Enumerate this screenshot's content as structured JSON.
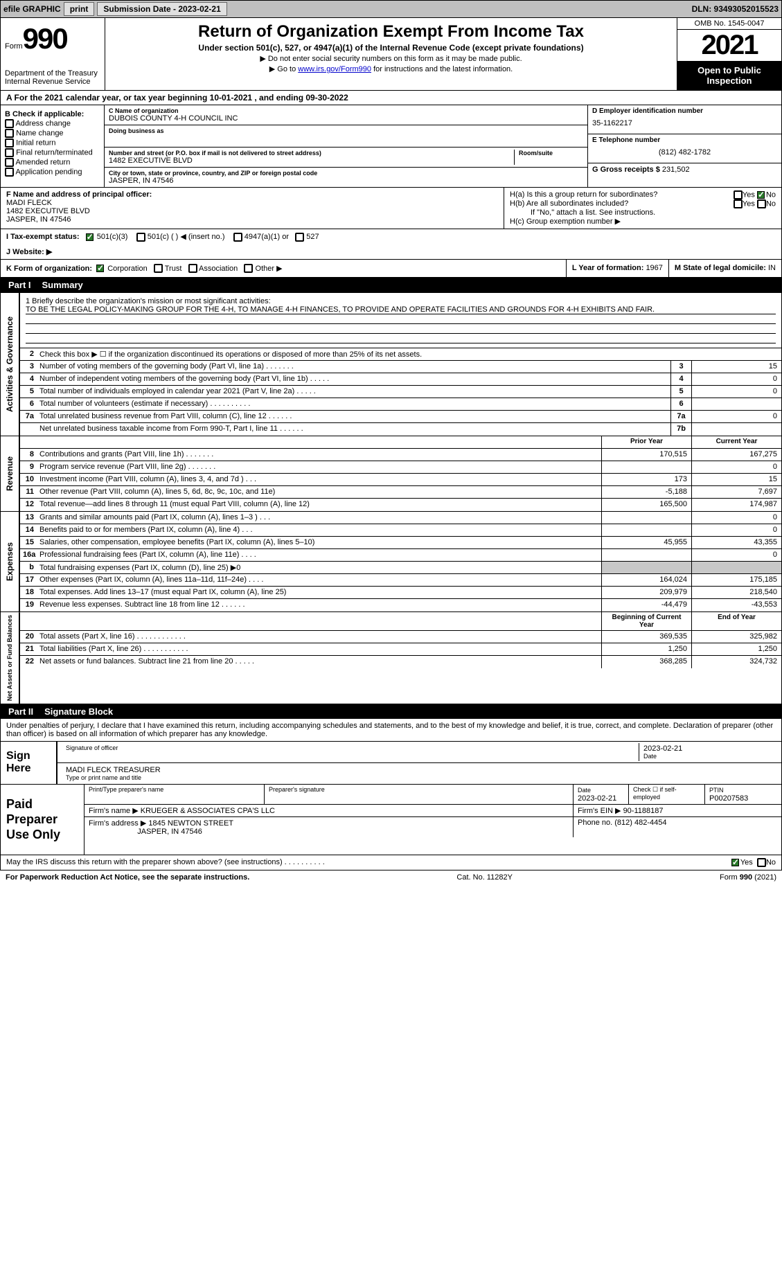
{
  "topbar": {
    "efile_label": "efile GRAPHIC",
    "print_btn": "print",
    "sub_date_label": "Submission Date - 2023-02-21",
    "dln_label": "DLN: 93493052015523"
  },
  "header": {
    "form_word": "Form",
    "form_num": "990",
    "dept": "Department of the Treasury",
    "irs": "Internal Revenue Service",
    "title": "Return of Organization Exempt From Income Tax",
    "subtitle": "Under section 501(c), 527, or 4947(a)(1) of the Internal Revenue Code (except private foundations)",
    "note1": "▶ Do not enter social security numbers on this form as it may be made public.",
    "note2_pre": "▶ Go to ",
    "note2_link": "www.irs.gov/Form990",
    "note2_post": " for instructions and the latest information.",
    "omb": "OMB No. 1545-0047",
    "year": "2021",
    "inspect": "Open to Public Inspection"
  },
  "row_a": "A For the 2021 calendar year, or tax year beginning 10-01-2021    , and ending 09-30-2022",
  "col_b": {
    "header": "B Check if applicable:",
    "items": [
      "Address change",
      "Name change",
      "Initial return",
      "Final return/terminated",
      "Amended return",
      "Application pending"
    ]
  },
  "col_c": {
    "name_label": "C Name of organization",
    "name": "DUBOIS COUNTY 4-H COUNCIL INC",
    "dba_label": "Doing business as",
    "addr_label": "Number and street (or P.O. box if mail is not delivered to street address)",
    "room_label": "Room/suite",
    "addr": "1482 EXECUTIVE BLVD",
    "city_label": "City or town, state or province, country, and ZIP or foreign postal code",
    "city": "JASPER, IN  47546"
  },
  "col_d": {
    "ein_label": "D Employer identification number",
    "ein": "35-1162217",
    "e_label": "E Telephone number",
    "phone": "(812) 482-1782",
    "g_label": "G Gross receipts $",
    "gross": "231,502"
  },
  "col_f": {
    "label": "F Name and address of principal officer:",
    "name": "MADI FLECK",
    "addr": "1482 EXECUTIVE BLVD",
    "city": "JASPER, IN  47546"
  },
  "col_h": {
    "ha": "H(a)  Is this a group return for subordinates?",
    "hb": "H(b)  Are all subordinates included?",
    "hb_note": "If \"No,\" attach a list. See instructions.",
    "hc": "H(c)  Group exemption number ▶",
    "yes": "Yes",
    "no": "No"
  },
  "row_i": {
    "label": "I  Tax-exempt status:",
    "opt1": "501(c)(3)",
    "opt2": "501(c) (   ) ◀ (insert no.)",
    "opt3": "4947(a)(1) or",
    "opt4": "527"
  },
  "row_j": {
    "label": "J  Website: ▶"
  },
  "row_k": {
    "label": "K Form of organization:",
    "opts": [
      "Corporation",
      "Trust",
      "Association",
      "Other ▶"
    ],
    "l_label": "L Year of formation: ",
    "l_val": "1967",
    "m_label": "M State of legal domicile: ",
    "m_val": "IN"
  },
  "part1": {
    "num": "Part I",
    "title": "Summary"
  },
  "mission": {
    "label": "1  Briefly describe the organization's mission or most significant activities:",
    "text": "TO BE THE LEGAL POLICY-MAKING GROUP FOR THE 4-H, TO MANAGE 4-H FINANCES, TO PROVIDE AND OPERATE FACILITIES AND GROUNDS FOR 4-H EXHIBITS AND FAIR."
  },
  "line2": "Check this box ▶ ☐ if the organization discontinued its operations or disposed of more than 25% of its net assets.",
  "vtabs": {
    "gov": "Activities & Governance",
    "rev": "Revenue",
    "exp": "Expenses",
    "net": "Net Assets or Fund Balances"
  },
  "gov_lines": [
    {
      "n": "3",
      "d": "Number of voting members of the governing body (Part VI, line 1a)   .    .    .    .    .    .    .",
      "b": "3",
      "v": "15"
    },
    {
      "n": "4",
      "d": "Number of independent voting members of the governing body (Part VI, line 1b)   .    .    .    .    .",
      "b": "4",
      "v": "0"
    },
    {
      "n": "5",
      "d": "Total number of individuals employed in calendar year 2021 (Part V, line 2a)   .    .    .    .    .",
      "b": "5",
      "v": "0"
    },
    {
      "n": "6",
      "d": "Total number of volunteers (estimate if necessary)    .    .    .    .    .    .    .    .    .    .",
      "b": "6",
      "v": ""
    },
    {
      "n": "7a",
      "d": "Total unrelated business revenue from Part VIII, column (C), line 12    .    .    .    .    .    .",
      "b": "7a",
      "v": "0"
    },
    {
      "n": "",
      "d": "Net unrelated business taxable income from Form 990-T, Part I, line 11   .    .    .    .    .    .",
      "b": "7b",
      "v": ""
    }
  ],
  "col_headers": {
    "prior": "Prior Year",
    "current": "Current Year",
    "boy": "Beginning of Current Year",
    "eoy": "End of Year"
  },
  "rev_lines": [
    {
      "n": "8",
      "d": "Contributions and grants (Part VIII, line 1h)   .    .    .    .    .    .    .",
      "p": "170,515",
      "c": "167,275"
    },
    {
      "n": "9",
      "d": "Program service revenue (Part VIII, line 2g)   .    .    .    .    .    .    .",
      "p": "",
      "c": "0"
    },
    {
      "n": "10",
      "d": "Investment income (Part VIII, column (A), lines 3, 4, and 7d )   .    .    .",
      "p": "173",
      "c": "15"
    },
    {
      "n": "11",
      "d": "Other revenue (Part VIII, column (A), lines 5, 6d, 8c, 9c, 10c, and 11e)",
      "p": "-5,188",
      "c": "7,697"
    },
    {
      "n": "12",
      "d": "Total revenue—add lines 8 through 11 (must equal Part VIII, column (A), line 12)",
      "p": "165,500",
      "c": "174,987"
    }
  ],
  "exp_lines": [
    {
      "n": "13",
      "d": "Grants and similar amounts paid (Part IX, column (A), lines 1–3 )   .    .    .",
      "p": "",
      "c": "0"
    },
    {
      "n": "14",
      "d": "Benefits paid to or for members (Part IX, column (A), line 4)   .    .    .",
      "p": "",
      "c": "0"
    },
    {
      "n": "15",
      "d": "Salaries, other compensation, employee benefits (Part IX, column (A), lines 5–10)",
      "p": "45,955",
      "c": "43,355"
    },
    {
      "n": "16a",
      "d": "Professional fundraising fees (Part IX, column (A), line 11e)   .    .    .    .",
      "p": "",
      "c": "0"
    },
    {
      "n": "b",
      "d": "Total fundraising expenses (Part IX, column (D), line 25) ▶0",
      "p": "grey",
      "c": "grey"
    },
    {
      "n": "17",
      "d": "Other expenses (Part IX, column (A), lines 11a–11d, 11f–24e)   .    .    .    .",
      "p": "164,024",
      "c": "175,185"
    },
    {
      "n": "18",
      "d": "Total expenses. Add lines 13–17 (must equal Part IX, column (A), line 25)",
      "p": "209,979",
      "c": "218,540"
    },
    {
      "n": "19",
      "d": "Revenue less expenses. Subtract line 18 from line 12   .    .    .    .    .    .",
      "p": "-44,479",
      "c": "-43,553"
    }
  ],
  "net_lines": [
    {
      "n": "20",
      "d": "Total assets (Part X, line 16)  .    .    .    .    .    .    .    .    .    .    .    .",
      "p": "369,535",
      "c": "325,982"
    },
    {
      "n": "21",
      "d": "Total liabilities (Part X, line 26)  .    .    .    .    .    .    .    .    .    .    .",
      "p": "1,250",
      "c": "1,250"
    },
    {
      "n": "22",
      "d": "Net assets or fund balances. Subtract line 21 from line 20   .    .    .    .    .",
      "p": "368,285",
      "c": "324,732"
    }
  ],
  "part2": {
    "num": "Part II",
    "title": "Signature Block"
  },
  "sig": {
    "perjury": "Under penalties of perjury, I declare that I have examined this return, including accompanying schedules and statements, and to the best of my knowledge and belief, it is true, correct, and complete. Declaration of preparer (other than officer) is based on all information of which preparer has any knowledge.",
    "sign_here": "Sign Here",
    "sig_officer": "Signature of officer",
    "date": "Date",
    "sig_date": "2023-02-21",
    "name_title": "MADI FLECK  TREASURER",
    "type_print": "Type or print name and title"
  },
  "paid": {
    "label": "Paid Preparer Use Only",
    "prep_name_label": "Print/Type preparer's name",
    "prep_sig_label": "Preparer's signature",
    "date_label": "Date",
    "date_val": "2023-02-21",
    "check_label": "Check ☐ if self-employed",
    "ptin_label": "PTIN",
    "ptin": "P00207583",
    "firm_name_label": "Firm's name    ▶",
    "firm_name": "KRUEGER & ASSOCIATES CPA'S LLC",
    "firm_ein_label": "Firm's EIN ▶",
    "firm_ein": "90-1188187",
    "firm_addr_label": "Firm's address ▶",
    "firm_addr1": "1845 NEWTON STREET",
    "firm_addr2": "JASPER, IN  47546",
    "phone_label": "Phone no.",
    "phone": "(812) 482-4454"
  },
  "discuss": {
    "text": "May the IRS discuss this return with the preparer shown above? (see instructions)   .    .    .    .    .    .    .    .    .    .",
    "yes": "Yes",
    "no": "No"
  },
  "footer": {
    "left": "For Paperwork Reduction Act Notice, see the separate instructions.",
    "mid": "Cat. No. 11282Y",
    "right": "Form 990 (2021)"
  }
}
